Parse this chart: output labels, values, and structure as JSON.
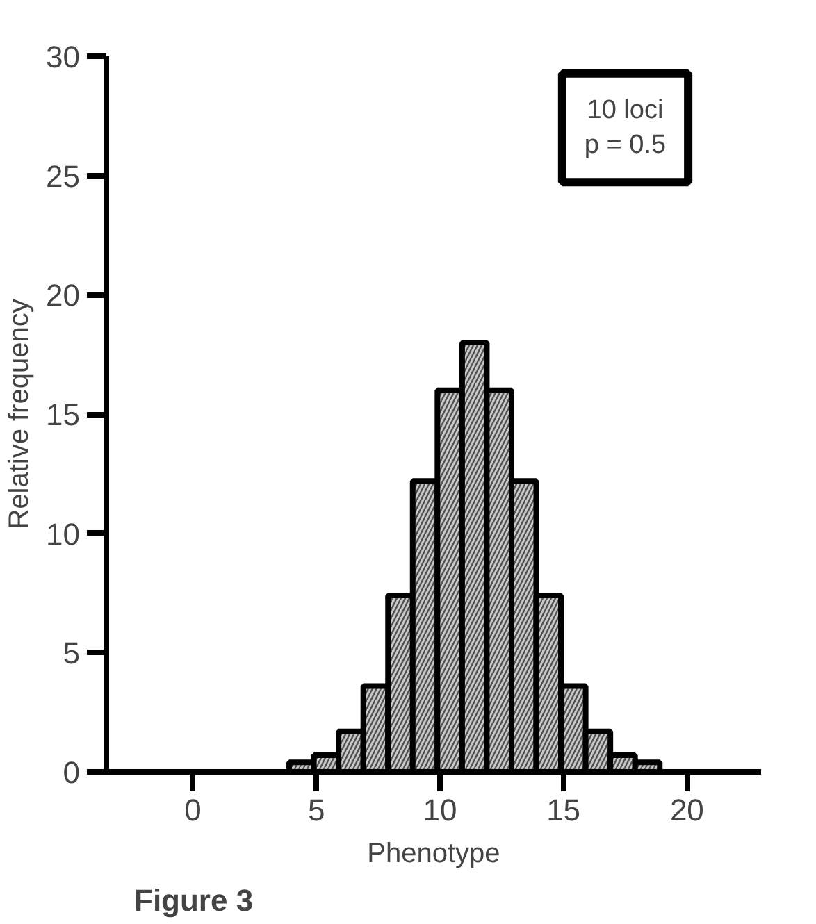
{
  "chart_data": {
    "type": "histogram",
    "bins": [
      3.9,
      4.9,
      5.9,
      6.9,
      7.9,
      8.9,
      9.9,
      10.9,
      11.9,
      12.9,
      13.9,
      14.9,
      15.9,
      16.9,
      17.9,
      18.9
    ],
    "values": [
      0.4,
      0.7,
      1.7,
      3.6,
      7.4,
      12.2,
      16,
      18,
      16,
      12.2,
      7.4,
      3.6,
      1.7,
      0.7,
      0.4
    ],
    "color": "#c8c8c8",
    "xlabel": "Phenotype",
    "ylabel": "Relative frequency",
    "xlim": [
      -3.5,
      23
    ],
    "ylim": [
      0,
      30
    ],
    "xticks": [
      0,
      5,
      10,
      15,
      20
    ],
    "yticks": [
      0,
      5,
      10,
      15,
      20,
      25,
      30
    ],
    "grid": false,
    "annotations": [
      {
        "text": "10 loci\np = 0.5"
      },
      {
        "text": "Figure 3"
      }
    ]
  }
}
